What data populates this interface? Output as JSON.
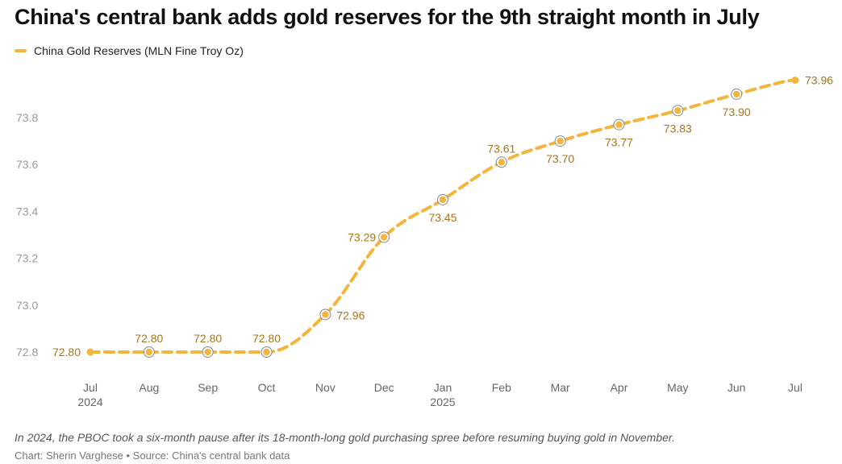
{
  "title": "China's central bank adds gold reserves for the 9th straight month in July",
  "note": "In 2024, the PBOC took a six-month pause after its 18-month-long gold purchasing spree before resuming buying gold in November.",
  "source": "Chart: Sherin Varghese • Source: China's central bank data",
  "colors": {
    "series": "#f5b43c",
    "label": "#a8741a"
  },
  "chart_data": {
    "type": "line",
    "title": "China's central bank adds gold reserves for the 9th straight month in July",
    "xlabel": "",
    "ylabel": "",
    "legend": "top-left",
    "grid": false,
    "ylim": [
      72.72,
      74.0
    ],
    "yticks": [
      "72.8",
      "73.0",
      "73.2",
      "73.4",
      "73.6",
      "73.8"
    ],
    "x": [
      "Jul 2024",
      "Aug 2024",
      "Sep 2024",
      "Oct 2024",
      "Nov 2024",
      "Dec 2024",
      "Jan 2025",
      "Feb 2025",
      "Mar 2025",
      "Apr 2025",
      "May 2025",
      "Jun 2025",
      "Jul 2025"
    ],
    "xtick_labels": [
      {
        "month": "Jul",
        "year": "2024"
      },
      {
        "month": "Aug",
        "year": ""
      },
      {
        "month": "Sep",
        "year": ""
      },
      {
        "month": "Oct",
        "year": ""
      },
      {
        "month": "Nov",
        "year": ""
      },
      {
        "month": "Dec",
        "year": ""
      },
      {
        "month": "Jan",
        "year": "2025"
      },
      {
        "month": "Feb",
        "year": ""
      },
      {
        "month": "Mar",
        "year": ""
      },
      {
        "month": "Apr",
        "year": ""
      },
      {
        "month": "May",
        "year": ""
      },
      {
        "month": "Jun",
        "year": ""
      },
      {
        "month": "Jul",
        "year": ""
      }
    ],
    "series": [
      {
        "name": "China Gold Reserves (MLN Fine Troy Oz)",
        "values": [
          72.8,
          72.8,
          72.8,
          72.8,
          72.96,
          73.29,
          73.45,
          73.61,
          73.7,
          73.77,
          73.83,
          73.9,
          73.96
        ],
        "labels": [
          "72.80",
          "72.80",
          "72.80",
          "72.80",
          "72.96",
          "73.29",
          "73.45",
          "73.61",
          "73.70",
          "73.77",
          "73.83",
          "73.90",
          "73.96"
        ]
      }
    ]
  }
}
